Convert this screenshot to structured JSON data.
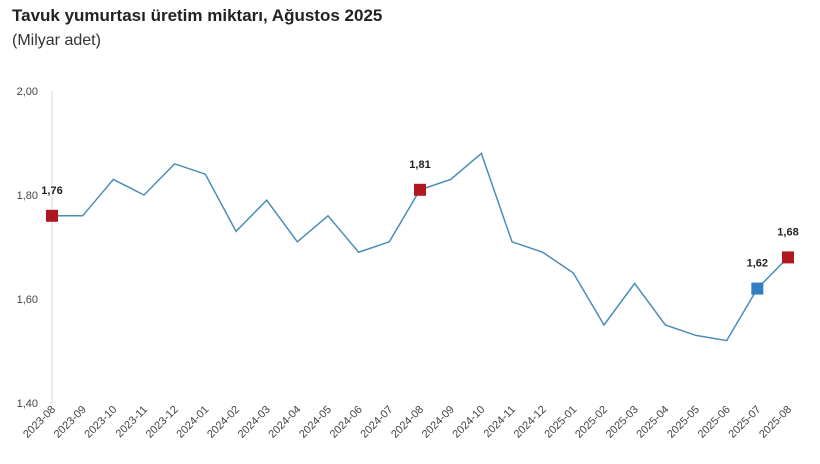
{
  "chart_data": {
    "type": "line",
    "title": "Tavuk yumurtası üretim miktarı, Ağustos 2025",
    "subtitle": "(Milyar adet)",
    "xlabel": "",
    "ylabel": "",
    "ylim": [
      1.4,
      2.0
    ],
    "yticks": [
      "1,40",
      "1,60",
      "1,80",
      "2,00"
    ],
    "ytick_values": [
      1.4,
      1.6,
      1.8,
      2.0
    ],
    "grid": false,
    "categories": [
      "2023-08",
      "2023-09",
      "2023-10",
      "2023-11",
      "2023-12",
      "2024-01",
      "2024-02",
      "2024-03",
      "2024-04",
      "2024-05",
      "2024-06",
      "2024-07",
      "2024-08",
      "2024-09",
      "2024-10",
      "2024-11",
      "2024-12",
      "2025-01",
      "2025-02",
      "2025-03",
      "2025-04",
      "2025-05",
      "2025-06",
      "2025-07",
      "2025-08"
    ],
    "values": [
      1.76,
      1.76,
      1.83,
      1.8,
      1.86,
      1.84,
      1.73,
      1.79,
      1.71,
      1.76,
      1.69,
      1.71,
      1.81,
      1.83,
      1.88,
      1.71,
      1.69,
      1.65,
      1.55,
      1.63,
      1.55,
      1.53,
      1.52,
      1.62,
      1.68
    ],
    "line_color": "#4a8db8",
    "highlights": [
      {
        "category": "2023-08",
        "label": "1,76",
        "color": "#b0181f"
      },
      {
        "category": "2024-08",
        "label": "1,81",
        "color": "#b0181f"
      },
      {
        "category": "2025-07",
        "label": "1,62",
        "color": "#2f7fc1"
      },
      {
        "category": "2025-08",
        "label": "1,68",
        "color": "#b0181f"
      }
    ]
  }
}
